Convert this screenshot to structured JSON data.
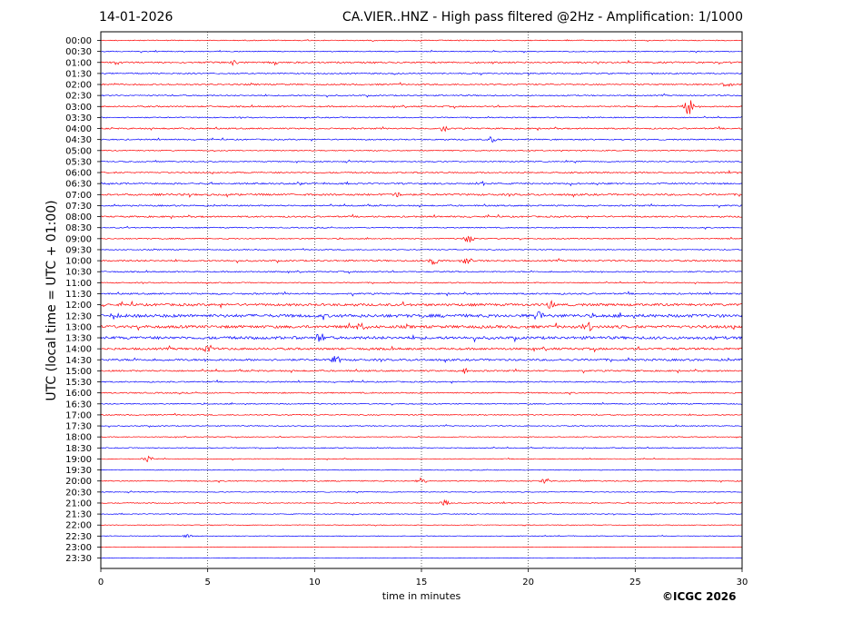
{
  "header": {
    "date": "14-01-2026",
    "title": "CA.VIER..HNZ - High pass filtered @2Hz - Amplification: 1/1000"
  },
  "footer": {
    "copyright": "©ICGC 2026"
  },
  "chart_data": {
    "type": "line",
    "title": "CA.VIER..HNZ - High pass filtered @2Hz - Amplification: 1/1000",
    "xlabel": "time in minutes",
    "ylabel": "UTC (local time = UTC + 01:00)",
    "xlim": [
      0,
      30
    ],
    "xticks": [
      0,
      5,
      10,
      15,
      20,
      25,
      30
    ],
    "vertical_grid_at": [
      5,
      10,
      15,
      20,
      25
    ],
    "row_colors": [
      "#ff0000",
      "#0000ff"
    ],
    "rows": [
      "00:00",
      "00:30",
      "01:00",
      "01:30",
      "02:00",
      "02:30",
      "03:00",
      "03:30",
      "04:00",
      "04:30",
      "05:00",
      "05:30",
      "06:00",
      "06:30",
      "07:00",
      "07:30",
      "08:00",
      "08:30",
      "09:00",
      "09:30",
      "10:00",
      "10:30",
      "11:00",
      "11:30",
      "12:00",
      "12:30",
      "13:00",
      "13:30",
      "14:00",
      "14:30",
      "15:00",
      "15:30",
      "16:00",
      "16:30",
      "17:00",
      "17:30",
      "18:00",
      "18:30",
      "19:00",
      "19:30",
      "20:00",
      "20:30",
      "21:00",
      "21:30",
      "22:00",
      "22:30",
      "23:00",
      "23:30"
    ],
    "row_noise": [
      0.6,
      0.6,
      1.0,
      0.8,
      0.9,
      0.8,
      0.9,
      0.7,
      0.9,
      0.8,
      0.7,
      0.7,
      0.9,
      1.0,
      1.2,
      0.9,
      1.0,
      0.7,
      0.7,
      0.6,
      1.0,
      0.8,
      0.7,
      1.0,
      1.6,
      2.0,
      1.8,
      1.8,
      1.4,
      1.3,
      1.0,
      0.8,
      0.8,
      0.7,
      0.7,
      0.6,
      0.5,
      0.6,
      0.5,
      0.5,
      0.7,
      0.5,
      0.6,
      0.5,
      0.4,
      0.5,
      0.3,
      0.3
    ],
    "events": [
      {
        "row": "01:00",
        "minute": 6.2,
        "amplitude": 3
      },
      {
        "row": "01:00",
        "minute": 8.1,
        "amplitude": 3
      },
      {
        "row": "02:00",
        "minute": 29.3,
        "amplitude": 4
      },
      {
        "row": "03:00",
        "minute": 27.5,
        "amplitude": 10
      },
      {
        "row": "04:00",
        "minute": 16.0,
        "amplitude": 4
      },
      {
        "row": "04:30",
        "minute": 18.3,
        "amplitude": 4
      },
      {
        "row": "06:30",
        "minute": 17.8,
        "amplitude": 3
      },
      {
        "row": "07:00",
        "minute": 13.8,
        "amplitude": 3
      },
      {
        "row": "09:00",
        "minute": 17.2,
        "amplitude": 5
      },
      {
        "row": "10:00",
        "minute": 15.6,
        "amplitude": 6
      },
      {
        "row": "10:00",
        "minute": 17.1,
        "amplitude": 5
      },
      {
        "row": "12:00",
        "minute": 21.0,
        "amplitude": 4
      },
      {
        "row": "12:30",
        "minute": 0.6,
        "amplitude": 4
      },
      {
        "row": "12:30",
        "minute": 20.5,
        "amplitude": 7
      },
      {
        "row": "13:00",
        "minute": 12.2,
        "amplitude": 6
      },
      {
        "row": "13:00",
        "minute": 22.8,
        "amplitude": 5
      },
      {
        "row": "13:30",
        "minute": 10.2,
        "amplitude": 6
      },
      {
        "row": "14:00",
        "minute": 5.0,
        "amplitude": 5
      },
      {
        "row": "14:30",
        "minute": 11.0,
        "amplitude": 5
      },
      {
        "row": "15:00",
        "minute": 17.0,
        "amplitude": 3
      },
      {
        "row": "19:00",
        "minute": 2.2,
        "amplitude": 4
      },
      {
        "row": "20:00",
        "minute": 15.0,
        "amplitude": 4
      },
      {
        "row": "20:00",
        "minute": 20.8,
        "amplitude": 4
      },
      {
        "row": "21:00",
        "minute": 16.1,
        "amplitude": 4
      },
      {
        "row": "22:30",
        "minute": 4.0,
        "amplitude": 3
      }
    ]
  }
}
